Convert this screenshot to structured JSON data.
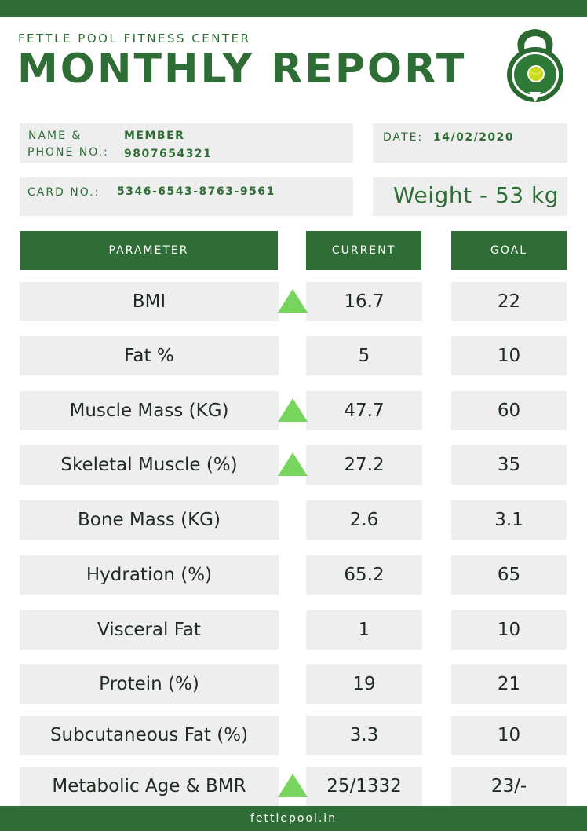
{
  "header": {
    "center_name": "FETTLE POOL FITNESS CENTER",
    "report_title": "MONTHLY REPORT"
  },
  "member": {
    "name_label_line1": "NAME &",
    "name_label_line2": "PHONE NO.:",
    "name": "MEMBER",
    "phone": "9807654321",
    "date_label": "DATE:",
    "date": "14/02/2020",
    "card_label": "CARD NO.:",
    "card_number": "5346-6543-8763-9561",
    "weight": "Weight - 53 kg"
  },
  "table": {
    "headers": {
      "parameter": "PARAMETER",
      "current": "CURRENT",
      "goal": "GOAL"
    },
    "rows": [
      {
        "parameter": "BMI",
        "current": "16.7",
        "goal": "22",
        "up_arrow": true
      },
      {
        "parameter": "Fat %",
        "current": "5",
        "goal": "10",
        "up_arrow": false
      },
      {
        "parameter": "Muscle Mass (KG)",
        "current": "47.7",
        "goal": "60",
        "up_arrow": true
      },
      {
        "parameter": "Skeletal Muscle (%)",
        "current": "27.2",
        "goal": "35",
        "up_arrow": true
      },
      {
        "parameter": "Bone Mass (KG)",
        "current": "2.6",
        "goal": "3.1",
        "up_arrow": false
      },
      {
        "parameter": "Hydration (%)",
        "current": "65.2",
        "goal": "65",
        "up_arrow": false
      },
      {
        "parameter": "Visceral Fat",
        "current": "1",
        "goal": "10",
        "up_arrow": false
      },
      {
        "parameter": "Protein (%)",
        "current": "19",
        "goal": "21",
        "up_arrow": false
      },
      {
        "parameter": "Subcutaneous Fat (%)",
        "current": "3.3",
        "goal": "10",
        "up_arrow": false
      },
      {
        "parameter": "Metabolic Age & BMR",
        "current": "25/1332",
        "goal": "23/-",
        "up_arrow": true
      }
    ]
  },
  "footer": {
    "website": "fettlepool.in"
  },
  "colors": {
    "brand_green": "#2e6d36",
    "arrow_green": "#77d55e",
    "cell_gray": "#eeeeee"
  },
  "icons": {
    "logo": "kettlebell-logo-icon",
    "arrow": "up-arrow-icon"
  }
}
